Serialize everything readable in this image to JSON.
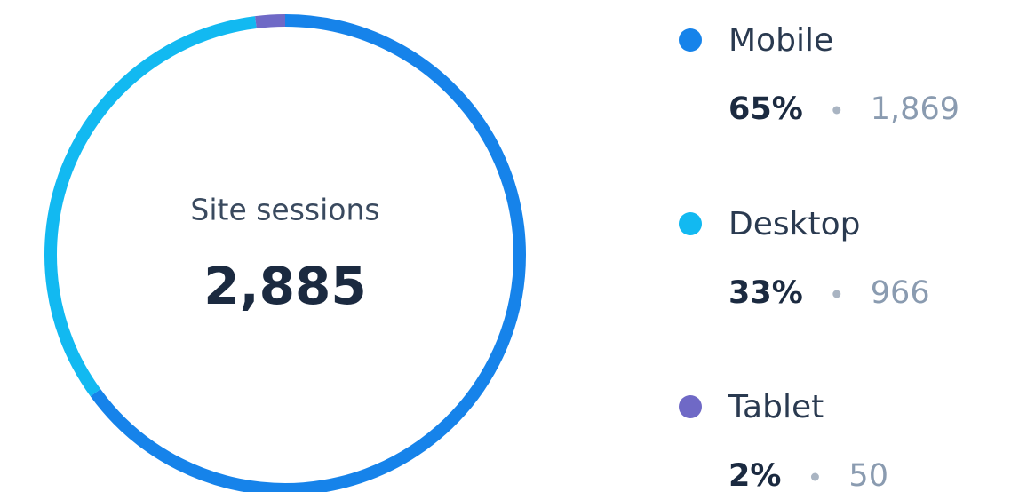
{
  "chart_data": {
    "type": "pie",
    "center": {
      "label": "Site sessions",
      "value": "2,885"
    },
    "categories": [
      "Mobile",
      "Desktop",
      "Tablet"
    ],
    "values": [
      65,
      33,
      2
    ],
    "value_labels": [
      "65%",
      "33%",
      "2%"
    ],
    "counts": [
      1869,
      966,
      50
    ],
    "count_labels": [
      "1,869",
      "966",
      "50"
    ],
    "colors": [
      "#1683ea",
      "#12b9f1",
      "#6f69c6"
    ],
    "donut": true,
    "legend": "right"
  }
}
